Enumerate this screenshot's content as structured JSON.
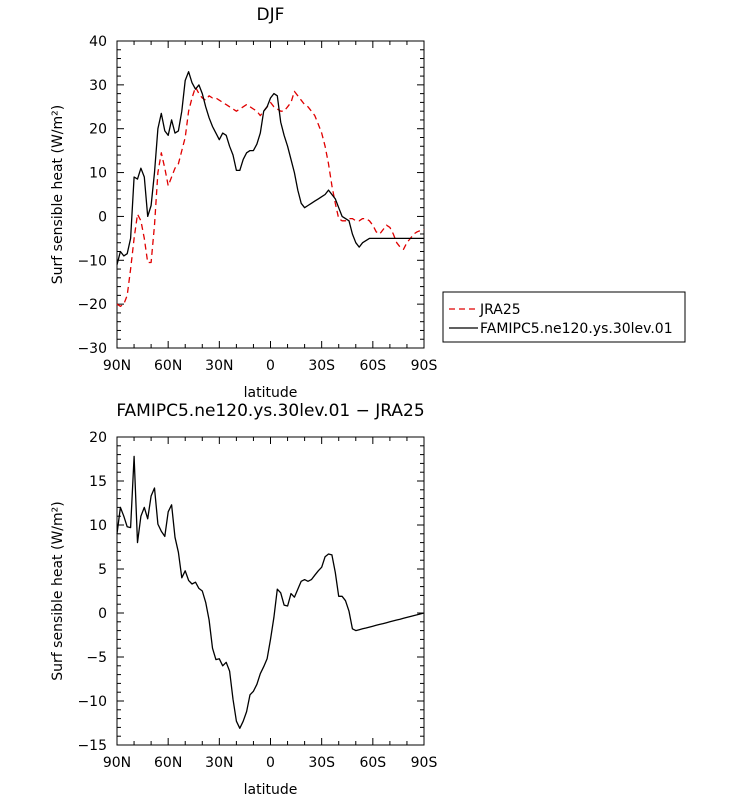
{
  "chart_data": [
    {
      "type": "line",
      "title": "DJF",
      "xlabel": "latitude",
      "ylabel": "Surf sensible heat (W/m²)",
      "ylim": [
        -30,
        40
      ],
      "yticks": [
        -30,
        -20,
        -10,
        0,
        10,
        20,
        30,
        40
      ],
      "xlim": [
        90,
        -90
      ],
      "xticks": [
        90,
        60,
        30,
        0,
        -30,
        -60,
        -90
      ],
      "xtick_labels": [
        "90N",
        "60N",
        "30N",
        "0",
        "30S",
        "60S",
        "90S"
      ],
      "legend_position": "right-middle",
      "series": [
        {
          "name": "JRA25",
          "color": "#e00000",
          "dash": "dashed",
          "x": [
            90,
            88,
            86,
            84,
            82,
            80,
            78,
            76,
            74,
            72,
            70,
            68,
            66,
            64,
            62,
            60,
            58,
            56,
            54,
            52,
            50,
            48,
            46,
            44,
            42,
            40,
            38,
            36,
            34,
            32,
            30,
            28,
            26,
            24,
            22,
            20,
            18,
            16,
            14,
            12,
            10,
            8,
            6,
            4,
            2,
            0,
            -2,
            -4,
            -6,
            -8,
            -10,
            -12,
            -14,
            -16,
            -18,
            -20,
            -22,
            -24,
            -26,
            -28,
            -30,
            -32,
            -34,
            -36,
            -38,
            -40,
            -42,
            -44,
            -46,
            -48,
            -50,
            -52,
            -54,
            -56,
            -58,
            -60,
            -62,
            -64,
            -66,
            -68,
            -70,
            -72,
            -74,
            -76,
            -78,
            -80,
            -82,
            -84,
            -86,
            -88,
            -90
          ],
          "y": [
            -20,
            -20.5,
            -20,
            -18,
            -12,
            -5,
            0.5,
            -1,
            -5,
            -10.5,
            -10.5,
            -2,
            10,
            14.5,
            11,
            7,
            9,
            11,
            12,
            15,
            18,
            24,
            27,
            29.5,
            28,
            27,
            26.5,
            27.5,
            27,
            27,
            26.5,
            26,
            25.5,
            25,
            24.5,
            24,
            24.5,
            25,
            25.5,
            25,
            24.5,
            24,
            23,
            24,
            25,
            26,
            25,
            24.5,
            24,
            24,
            25,
            26,
            28.5,
            27.5,
            26.5,
            25.5,
            25,
            24,
            23,
            21,
            19,
            16,
            12,
            7,
            3,
            -0.5,
            -1,
            -1,
            -0.5,
            -0.5,
            -1,
            -1,
            -0.5,
            -0.5,
            -1,
            -2,
            -3.5,
            -4,
            -3,
            -2,
            -2.5,
            -4,
            -6,
            -7,
            -7.5,
            -6,
            -5,
            -4,
            -3.5,
            -3.2,
            -3
          ]
        },
        {
          "name": "FAMIPC5.ne120.ys.30lev.01",
          "color": "#000000",
          "dash": "solid",
          "x": [
            90,
            88,
            86,
            84,
            82,
            80,
            78,
            76,
            74,
            72,
            70,
            68,
            66,
            64,
            62,
            60,
            58,
            56,
            54,
            52,
            50,
            48,
            46,
            44,
            42,
            40,
            38,
            36,
            34,
            32,
            30,
            28,
            26,
            24,
            22,
            20,
            18,
            16,
            14,
            12,
            10,
            8,
            6,
            4,
            2,
            0,
            -2,
            -4,
            -6,
            -8,
            -10,
            -12,
            -14,
            -16,
            -18,
            -20,
            -22,
            -24,
            -26,
            -28,
            -30,
            -32,
            -34,
            -36,
            -38,
            -40,
            -42,
            -44,
            -46,
            -48,
            -50,
            -52,
            -54,
            -56,
            -58,
            -60,
            -62,
            -64,
            -66,
            -68,
            -70,
            -72,
            -74,
            -76,
            -78,
            -80,
            -82,
            -84,
            -86,
            -88,
            -90
          ],
          "y": [
            -11,
            -8,
            -9,
            -8.5,
            -5,
            9,
            8.5,
            11,
            9,
            0,
            2.5,
            10,
            20,
            23.5,
            19.5,
            18.5,
            22,
            19,
            19.5,
            24,
            31,
            33,
            30.5,
            29,
            30,
            28,
            25,
            22.5,
            20.5,
            19,
            17.5,
            19,
            18.5,
            16,
            14,
            10.5,
            10.5,
            13,
            14.5,
            15,
            15,
            16.5,
            19,
            24,
            25,
            27,
            28,
            27.5,
            21.5,
            18.5,
            16,
            13,
            10,
            6,
            3,
            2,
            2.5,
            3,
            3.5,
            4,
            4.5,
            5,
            6,
            5,
            4,
            2,
            0,
            -0.5,
            -1,
            -4,
            -6,
            -7,
            -6,
            -5.5,
            -5,
            -5,
            -5,
            -5,
            -5,
            -5,
            -5,
            -5,
            -5,
            -5,
            -5,
            -5,
            -5,
            -5,
            -5,
            -5,
            -5
          ]
        }
      ]
    },
    {
      "type": "line",
      "title": "FAMIPC5.ne120.ys.30lev.01 − JRA25",
      "xlabel": "latitude",
      "ylabel": "Surf sensible heat (W/m²)",
      "ylim": [
        -15,
        20
      ],
      "yticks": [
        -15,
        -10,
        -5,
        0,
        5,
        10,
        15,
        20
      ],
      "xlim": [
        90,
        -90
      ],
      "xticks": [
        90,
        60,
        30,
        0,
        -30,
        -60,
        -90
      ],
      "xtick_labels": [
        "90N",
        "60N",
        "30N",
        "0",
        "30S",
        "60S",
        "90S"
      ],
      "series": [
        {
          "color": "#000000",
          "dash": "solid",
          "x": [
            90,
            88,
            86,
            84,
            82,
            80,
            78,
            76,
            74,
            72,
            70,
            68,
            66,
            64,
            62,
            60,
            58,
            56,
            54,
            52,
            50,
            48,
            46,
            44,
            42,
            40,
            38,
            36,
            34,
            32,
            30,
            28,
            26,
            24,
            22,
            20,
            18,
            16,
            14,
            12,
            10,
            8,
            6,
            4,
            2,
            0,
            -2,
            -4,
            -6,
            -8,
            -10,
            -12,
            -14,
            -16,
            -18,
            -20,
            -22,
            -24,
            -26,
            -28,
            -30,
            -32,
            -34,
            -36,
            -38,
            -40,
            -42,
            -44,
            -46,
            -48,
            -50,
            -52,
            -54,
            -56,
            -58,
            -60,
            -62,
            -64,
            -66,
            -68,
            -70,
            -72,
            -74,
            -76,
            -78,
            -80,
            -82,
            -84,
            -86,
            -88,
            -90
          ],
          "y": [
            9,
            12,
            11,
            9.8,
            9.7,
            17.8,
            8,
            11,
            12,
            10.7,
            13.3,
            14.2,
            10.1,
            9.3,
            8.7,
            11.5,
            12.3,
            8.6,
            6.9,
            4,
            4.8,
            3.7,
            3.3,
            3.5,
            2.8,
            2.5,
            1.2,
            -0.8,
            -4,
            -5.3,
            -5.2,
            -6,
            -5.6,
            -6.6,
            -9.8,
            -12.3,
            -13.1,
            -12.3,
            -11.2,
            -9.3,
            -8.9,
            -8.1,
            -6.9,
            -6.1,
            -5.2,
            -3,
            -0.5,
            2.7,
            2.3,
            0.9,
            0.8,
            2.2,
            1.8,
            2.7,
            3.6,
            3.8,
            3.6,
            3.8,
            4.3,
            4.8,
            5.2,
            6.4,
            6.7,
            6.6,
            4.6,
            1.9,
            1.9,
            1.4,
            0.2,
            -1.8,
            -2,
            -1.9,
            -1.8,
            -1.7,
            -1.6,
            -1.5,
            -1.4,
            -1.3,
            -1.2,
            -1.1,
            -1,
            -0.9,
            -0.8,
            -0.7,
            -0.6,
            -0.5,
            -0.4,
            -0.3,
            -0.2,
            -0.1,
            0
          ]
        }
      ]
    }
  ]
}
